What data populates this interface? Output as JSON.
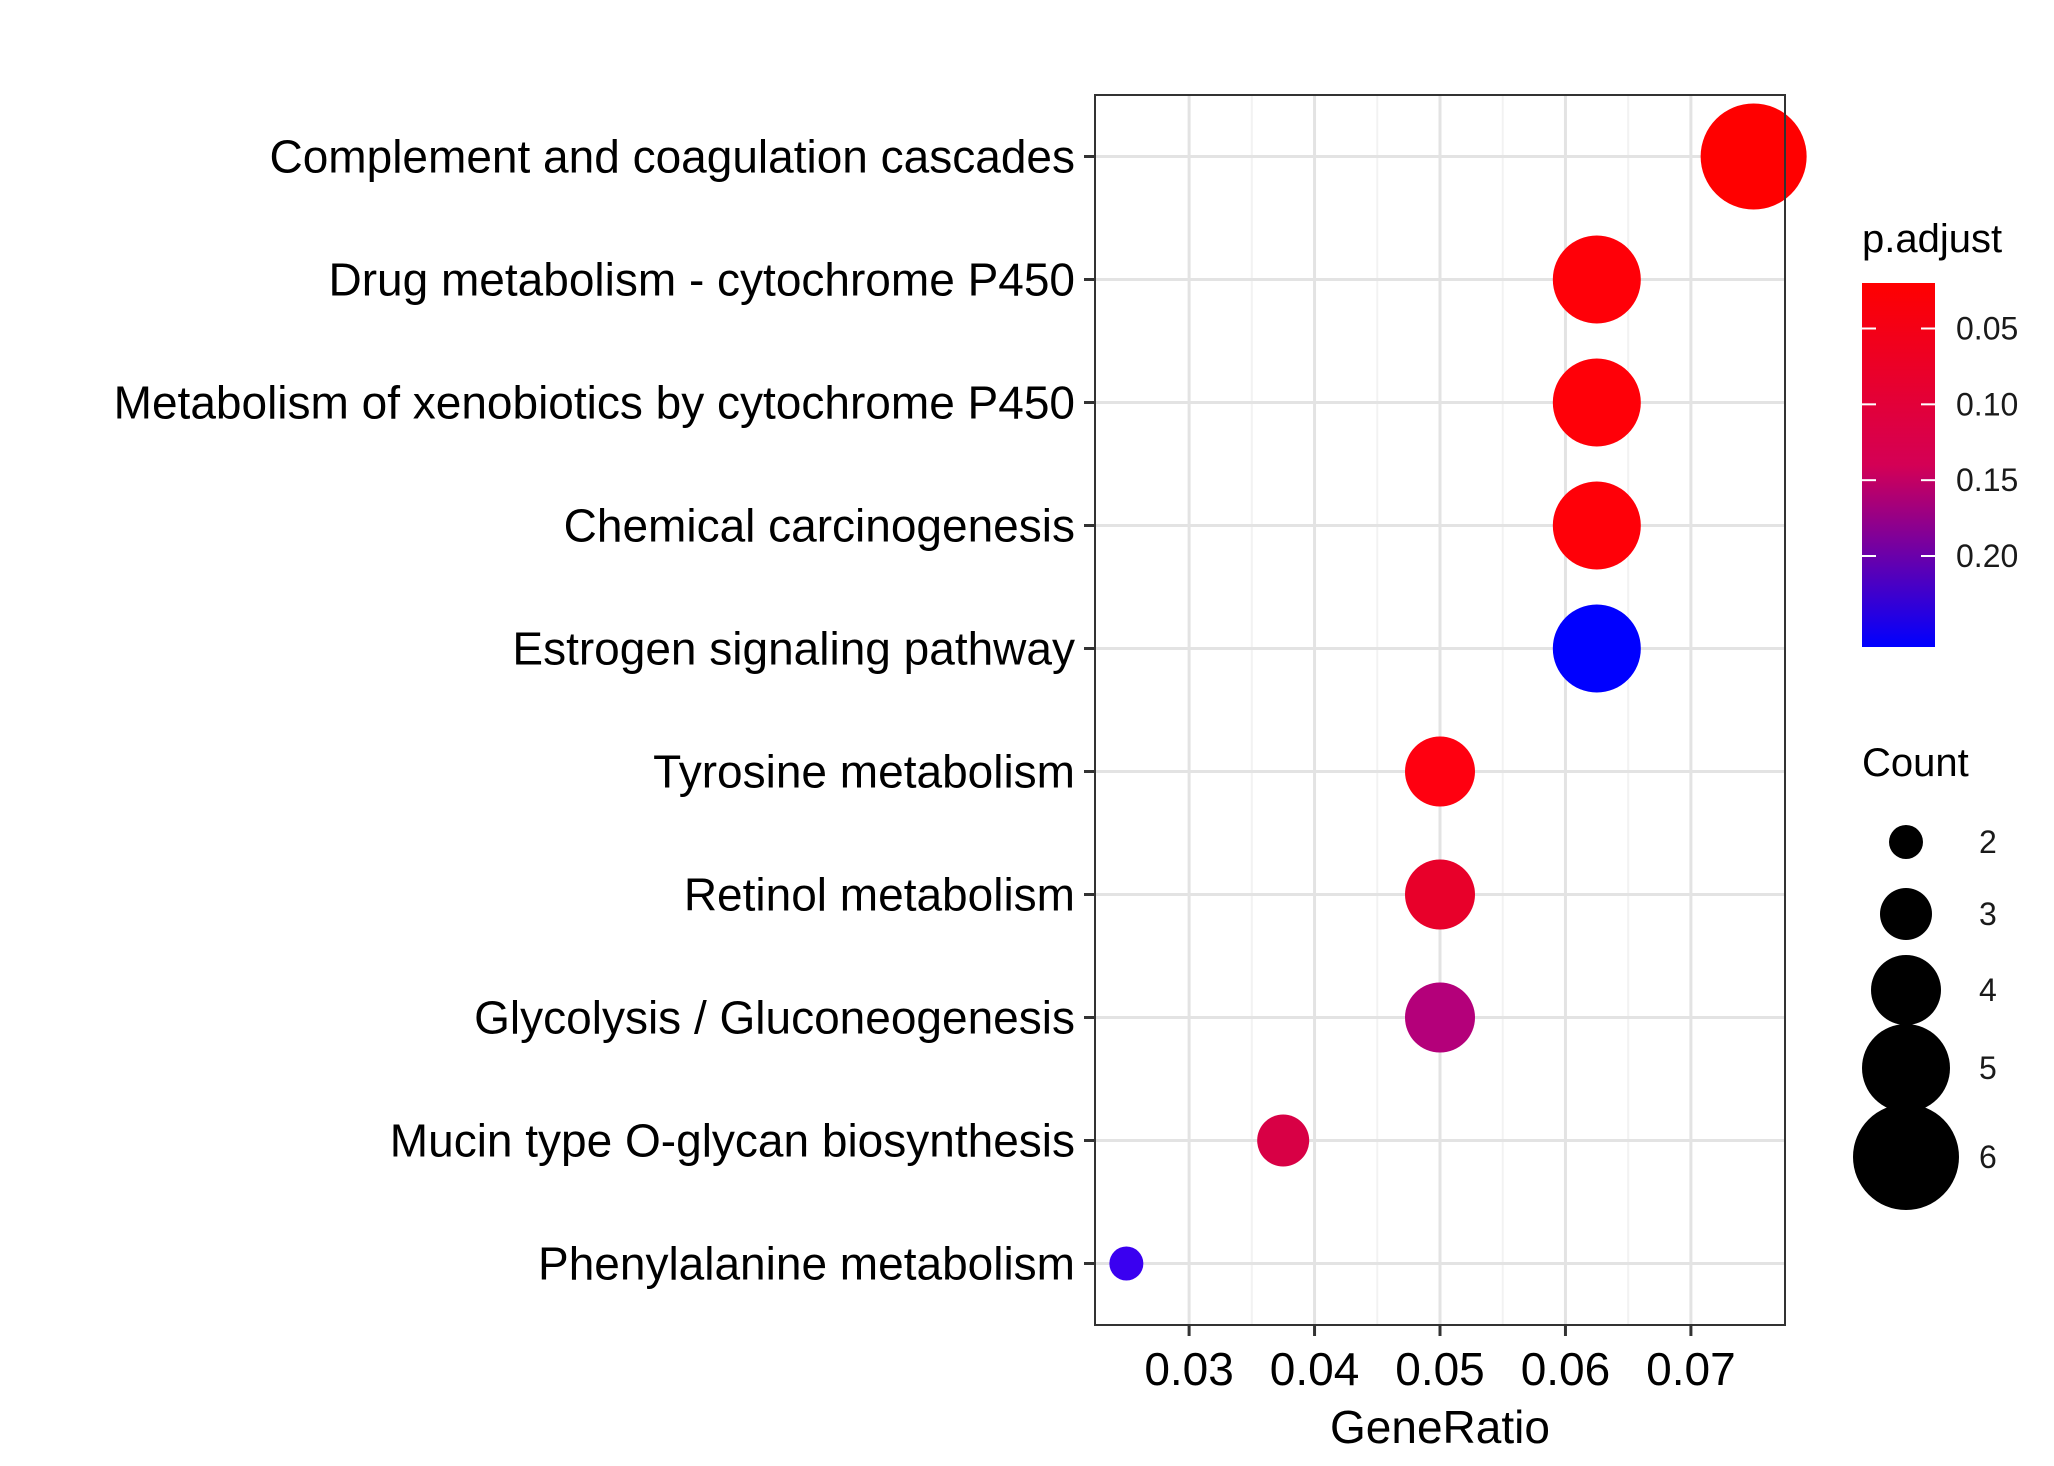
{
  "chart_data": {
    "type": "scatter",
    "xlabel": "GeneRatio",
    "ylabel": "",
    "xlim": [
      0.0225,
      0.0775
    ],
    "x_ticks": [
      0.03,
      0.04,
      0.05,
      0.06,
      0.07
    ],
    "x_tick_labels": [
      "0.03",
      "0.04",
      "0.05",
      "0.06",
      "0.07"
    ],
    "grid": true,
    "categories": [
      "Complement and coagulation cascades",
      "Drug metabolism - cytochrome P450",
      "Metabolism of xenobiotics by cytochrome P450",
      "Chemical carcinogenesis",
      "Estrogen signaling pathway",
      "Tyrosine metabolism",
      "Retinol metabolism",
      "Glycolysis / Gluconeogenesis",
      "Mucin type O-glycan biosynthesis",
      "Phenylalanine metabolism"
    ],
    "points": [
      {
        "term": "Complement and coagulation cascades",
        "gene_ratio": 0.075,
        "count": 6,
        "p_adjust": 0.02,
        "color": "#FF0000"
      },
      {
        "term": "Drug metabolism - cytochrome P450",
        "gene_ratio": 0.0625,
        "count": 5,
        "p_adjust": 0.022,
        "color": "#FF0008"
      },
      {
        "term": "Metabolism of xenobiotics by cytochrome P450",
        "gene_ratio": 0.0625,
        "count": 5,
        "p_adjust": 0.022,
        "color": "#FF0008"
      },
      {
        "term": "Chemical carcinogenesis",
        "gene_ratio": 0.0625,
        "count": 5,
        "p_adjust": 0.022,
        "color": "#FF0008"
      },
      {
        "term": "Estrogen signaling pathway",
        "gene_ratio": 0.0625,
        "count": 5,
        "p_adjust": 0.25,
        "color": "#0000FF"
      },
      {
        "term": "Tyrosine metabolism",
        "gene_ratio": 0.05,
        "count": 4,
        "p_adjust": 0.03,
        "color": "#FF0010"
      },
      {
        "term": "Retinol metabolism",
        "gene_ratio": 0.05,
        "count": 4,
        "p_adjust": 0.06,
        "color": "#E8002A"
      },
      {
        "term": "Glycolysis / Gluconeogenesis",
        "gene_ratio": 0.05,
        "count": 4,
        "p_adjust": 0.13,
        "color": "#B4007A"
      },
      {
        "term": "Mucin type O-glycan biosynthesis",
        "gene_ratio": 0.0375,
        "count": 3,
        "p_adjust": 0.08,
        "color": "#D80045"
      },
      {
        "term": "Phenylalanine metabolism",
        "gene_ratio": 0.025,
        "count": 2,
        "p_adjust": 0.24,
        "color": "#3A00F0"
      }
    ],
    "color_legend": {
      "title": "p.adjust",
      "range": [
        0.02,
        0.26
      ],
      "ticks": [
        0.05,
        0.1,
        0.15,
        0.2
      ],
      "tick_labels": [
        "0.05",
        "0.10",
        "0.15",
        "0.20"
      ],
      "low_color": "#FF0000",
      "high_color": "#0000FF",
      "placement": "right"
    },
    "size_legend": {
      "title": "Count",
      "values": [
        2,
        3,
        4,
        5,
        6
      ],
      "labels": [
        "2",
        "3",
        "4",
        "5",
        "6"
      ],
      "placement": "right"
    }
  }
}
